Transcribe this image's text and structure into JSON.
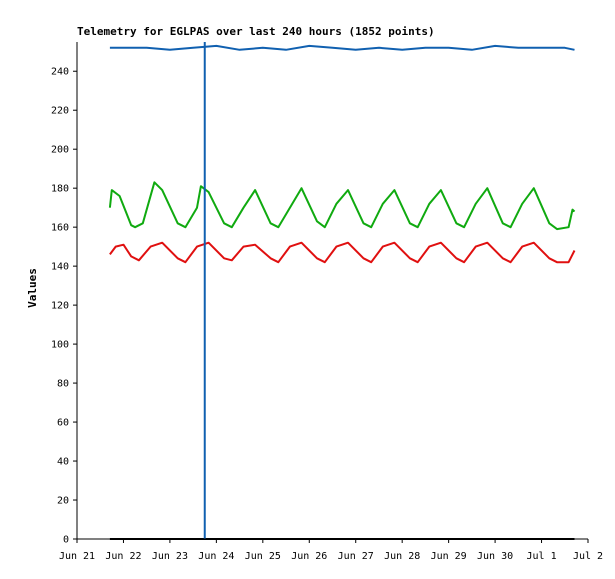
{
  "chart_data": {
    "type": "line",
    "title": "Telemetry for EGLPAS over last 240 hours (1852 points)",
    "xlabel": "",
    "ylabel": "Values",
    "ylim": [
      0,
      255
    ],
    "yticks": [
      0,
      20,
      40,
      60,
      80,
      100,
      120,
      140,
      160,
      180,
      200,
      220,
      240
    ],
    "xlim": [
      "2023-06-21",
      "2023-07-02"
    ],
    "xticks": [
      {
        "date": "2023-06-21",
        "label": "Jun 21"
      },
      {
        "date": "2023-06-22",
        "label": "Jun 22"
      },
      {
        "date": "2023-06-23",
        "label": "Jun 23"
      },
      {
        "date": "2023-06-24",
        "label": "Jun 24"
      },
      {
        "date": "2023-06-25",
        "label": "Jun 25"
      },
      {
        "date": "2023-06-26",
        "label": "Jun 26"
      },
      {
        "date": "2023-06-27",
        "label": "Jun 27"
      },
      {
        "date": "2023-06-28",
        "label": "Jun 28"
      },
      {
        "date": "2023-06-29",
        "label": "Jun 29"
      },
      {
        "date": "2023-06-30",
        "label": "Jun 30"
      },
      {
        "date": "2023-07-01",
        "label": "Jul 1"
      },
      {
        "date": "2023-07-02",
        "label": "Jul 2"
      }
    ],
    "grid": false,
    "legend": "none",
    "marker_line": {
      "date": "2023-06-23 18:00",
      "color": "#1060b0"
    },
    "series": [
      {
        "color": "#1060b0",
        "x": [
          "2023-06-21 17:00",
          "2023-06-22 00:00",
          "2023-06-22 12:00",
          "2023-06-23 00:00",
          "2023-06-23 12:00",
          "2023-06-24 00:00",
          "2023-06-24 12:00",
          "2023-06-25 00:00",
          "2023-06-25 12:00",
          "2023-06-26 00:00",
          "2023-06-26 12:00",
          "2023-06-27 00:00",
          "2023-06-27 12:00",
          "2023-06-28 00:00",
          "2023-06-28 12:00",
          "2023-06-29 00:00",
          "2023-06-29 12:00",
          "2023-06-30 00:00",
          "2023-06-30 12:00",
          "2023-07-01 00:00",
          "2023-07-01 12:00",
          "2023-07-01 17:00"
        ],
        "y": [
          252,
          252,
          252,
          251,
          252,
          253,
          251,
          252,
          251,
          253,
          252,
          251,
          252,
          251,
          252,
          252,
          251,
          253,
          252,
          252,
          252,
          251
        ]
      },
      {
        "color": "#10aa10",
        "x": [
          "2023-06-21 17:00",
          "2023-06-21 18:00",
          "2023-06-21 22:00",
          "2023-06-22 04:00",
          "2023-06-22 06:00",
          "2023-06-22 10:00",
          "2023-06-22 16:00",
          "2023-06-22 20:00",
          "2023-06-23 04:00",
          "2023-06-23 08:00",
          "2023-06-23 14:00",
          "2023-06-23 16:00",
          "2023-06-23 20:00",
          "2023-06-24 04:00",
          "2023-06-24 08:00",
          "2023-06-24 14:00",
          "2023-06-24 20:00",
          "2023-06-25 04:00",
          "2023-06-25 08:00",
          "2023-06-25 14:00",
          "2023-06-25 20:00",
          "2023-06-26 04:00",
          "2023-06-26 08:00",
          "2023-06-26 14:00",
          "2023-06-26 20:00",
          "2023-06-27 04:00",
          "2023-06-27 08:00",
          "2023-06-27 14:00",
          "2023-06-27 20:00",
          "2023-06-28 04:00",
          "2023-06-28 08:00",
          "2023-06-28 14:00",
          "2023-06-28 20:00",
          "2023-06-29 04:00",
          "2023-06-29 08:00",
          "2023-06-29 14:00",
          "2023-06-29 20:00",
          "2023-06-30 04:00",
          "2023-06-30 08:00",
          "2023-06-30 14:00",
          "2023-06-30 20:00",
          "2023-07-01 04:00",
          "2023-07-01 08:00",
          "2023-07-01 14:00",
          "2023-07-01 16:00",
          "2023-07-01 17:00"
        ],
        "y": [
          170,
          179,
          176,
          161,
          160,
          162,
          183,
          179,
          162,
          160,
          170,
          181,
          178,
          162,
          160,
          170,
          179,
          162,
          160,
          170,
          180,
          163,
          160,
          172,
          179,
          162,
          160,
          172,
          179,
          162,
          160,
          172,
          179,
          162,
          160,
          172,
          180,
          162,
          160,
          172,
          180,
          162,
          159,
          160,
          169,
          168
        ]
      },
      {
        "color": "#e01010",
        "x": [
          "2023-06-21 17:00",
          "2023-06-21 20:00",
          "2023-06-22 00:00",
          "2023-06-22 04:00",
          "2023-06-22 08:00",
          "2023-06-22 14:00",
          "2023-06-22 20:00",
          "2023-06-23 04:00",
          "2023-06-23 08:00",
          "2023-06-23 14:00",
          "2023-06-23 20:00",
          "2023-06-24 04:00",
          "2023-06-24 08:00",
          "2023-06-24 14:00",
          "2023-06-24 20:00",
          "2023-06-25 04:00",
          "2023-06-25 08:00",
          "2023-06-25 14:00",
          "2023-06-25 20:00",
          "2023-06-26 04:00",
          "2023-06-26 08:00",
          "2023-06-26 14:00",
          "2023-06-26 20:00",
          "2023-06-27 04:00",
          "2023-06-27 08:00",
          "2023-06-27 14:00",
          "2023-06-27 20:00",
          "2023-06-28 04:00",
          "2023-06-28 08:00",
          "2023-06-28 14:00",
          "2023-06-28 20:00",
          "2023-06-29 04:00",
          "2023-06-29 08:00",
          "2023-06-29 14:00",
          "2023-06-29 20:00",
          "2023-06-30 04:00",
          "2023-06-30 08:00",
          "2023-06-30 14:00",
          "2023-06-30 20:00",
          "2023-07-01 04:00",
          "2023-07-01 08:00",
          "2023-07-01 14:00",
          "2023-07-01 17:00"
        ],
        "y": [
          146,
          150,
          151,
          145,
          143,
          150,
          152,
          144,
          142,
          150,
          152,
          144,
          143,
          150,
          151,
          144,
          142,
          150,
          152,
          144,
          142,
          150,
          152,
          144,
          142,
          150,
          152,
          144,
          142,
          150,
          152,
          144,
          142,
          150,
          152,
          144,
          142,
          150,
          152,
          144,
          142,
          142,
          148
        ]
      },
      {
        "color": "#000000",
        "x": [
          "2023-06-21 17:00",
          "2023-07-01 17:00"
        ],
        "y": [
          0,
          0
        ]
      }
    ]
  }
}
